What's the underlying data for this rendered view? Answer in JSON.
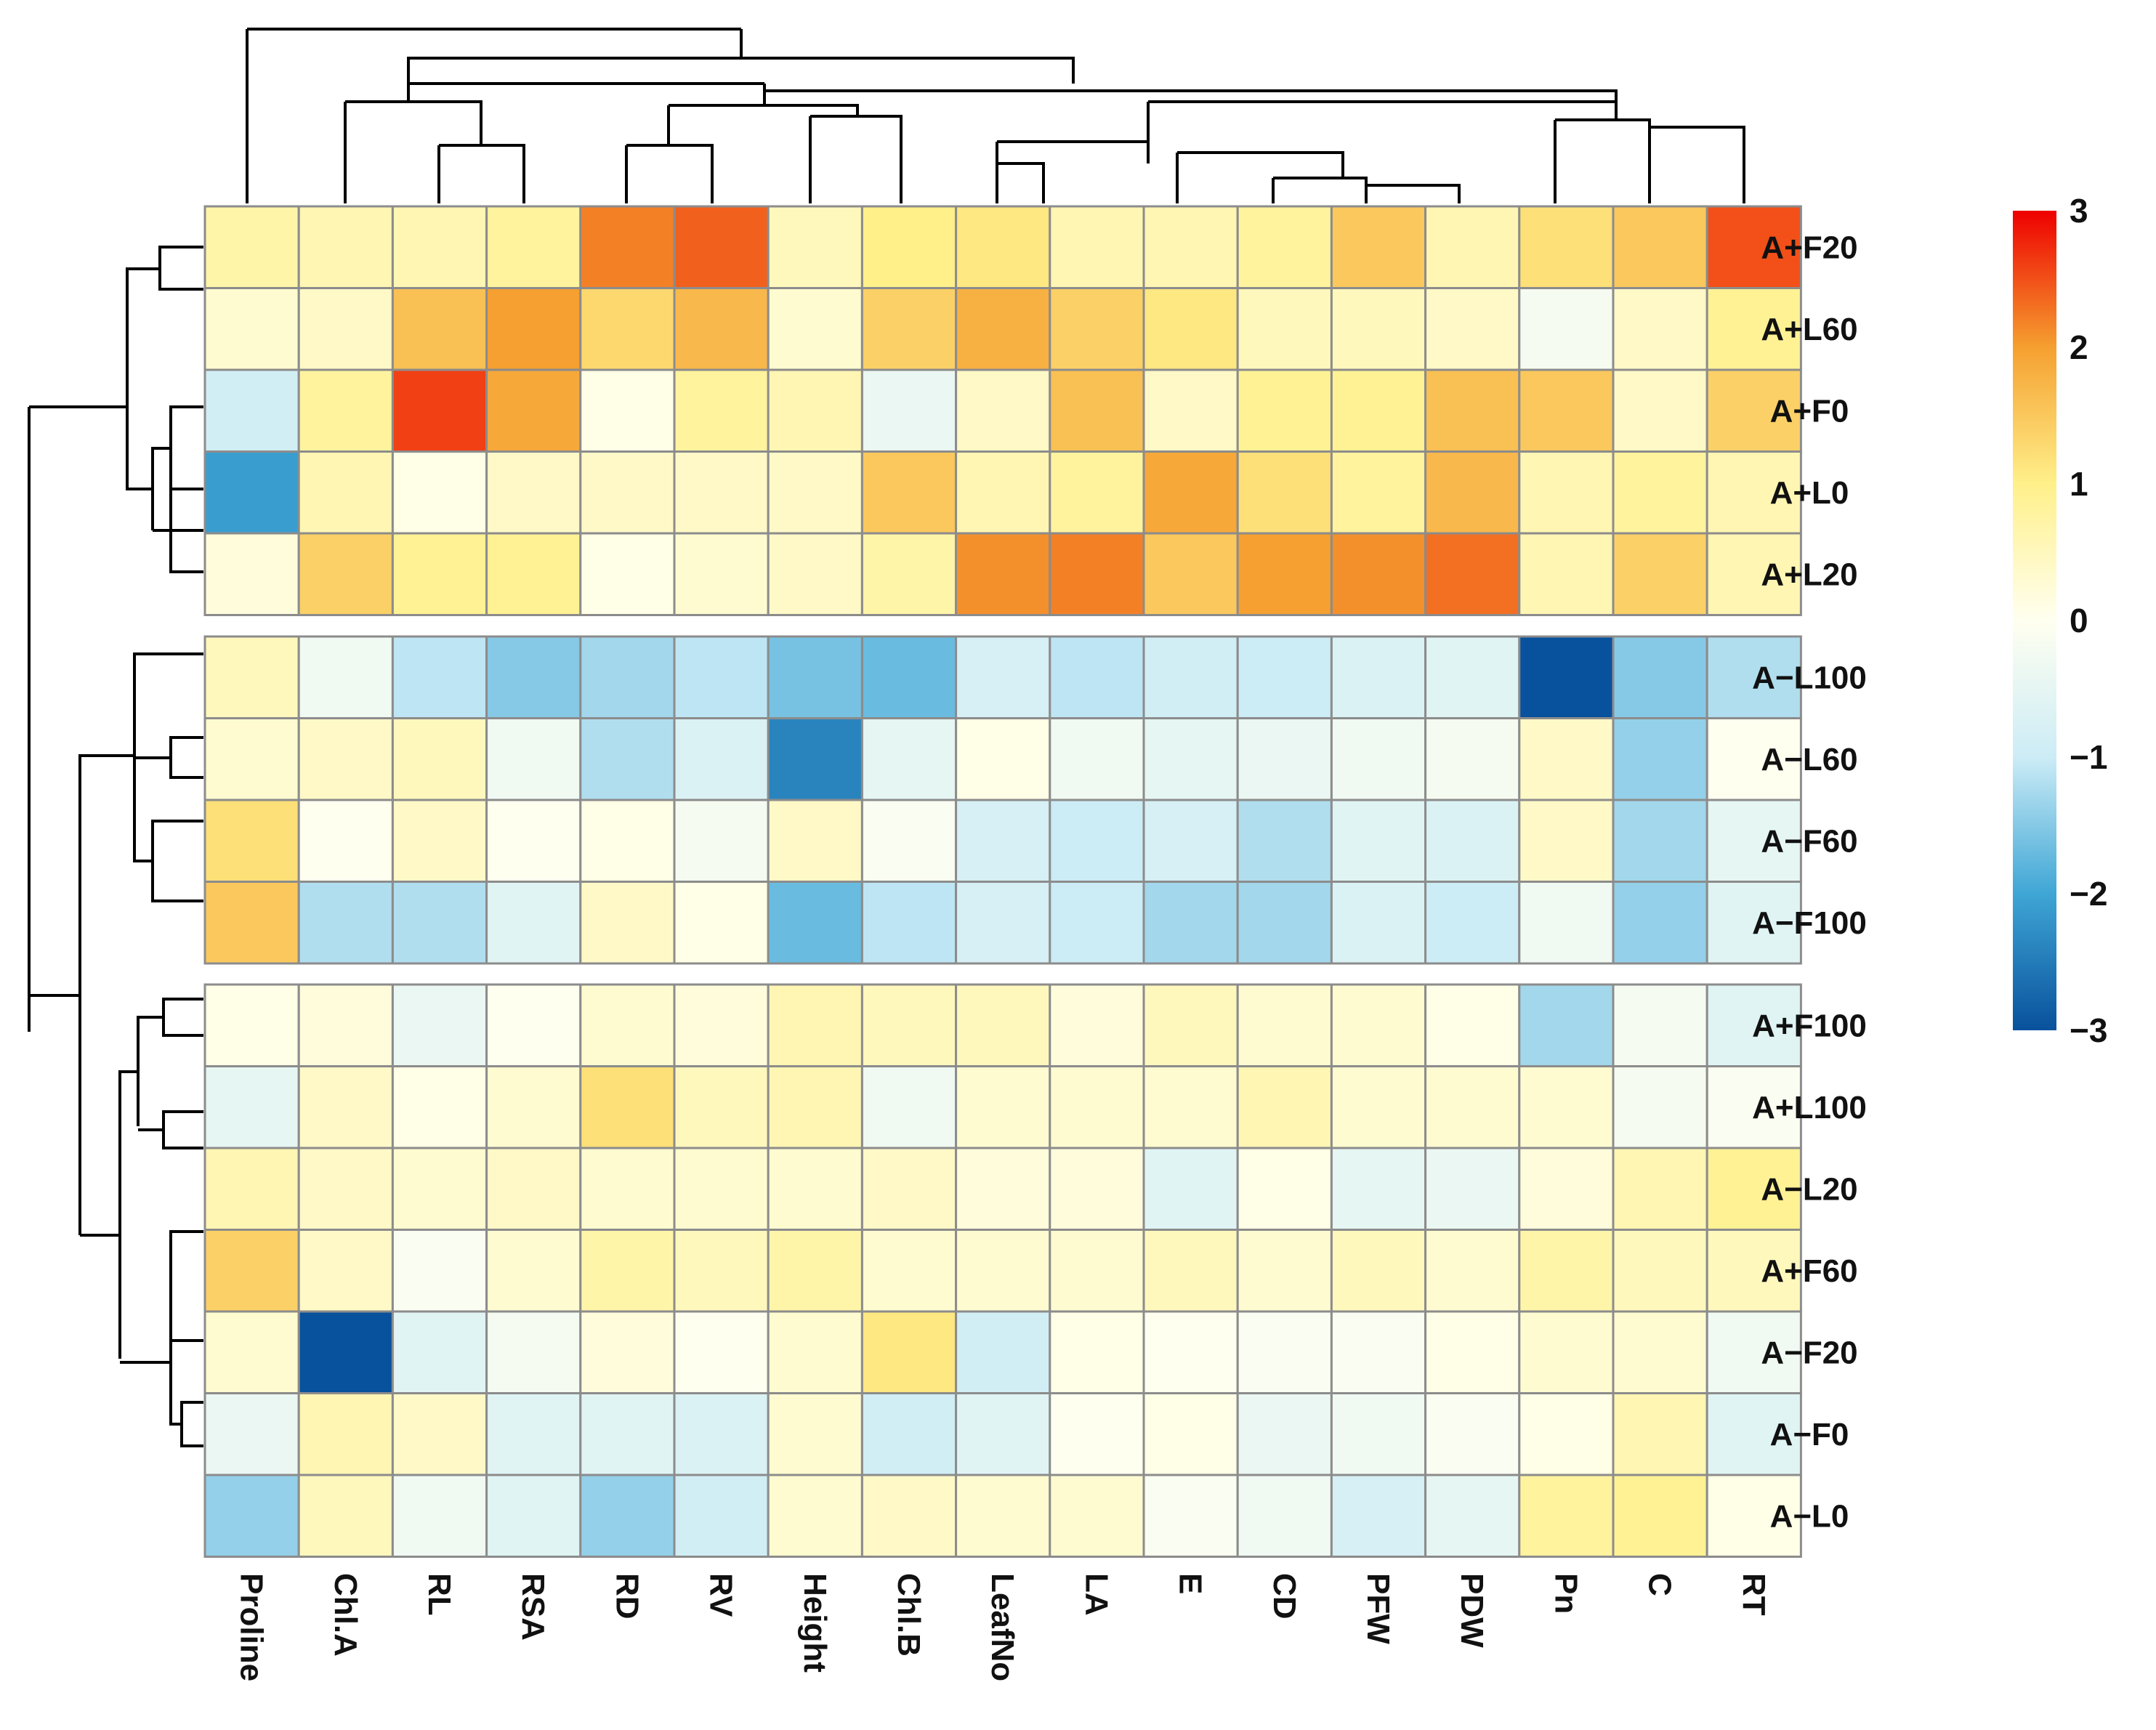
{
  "chart_data": {
    "type": "heatmap",
    "title": "",
    "columns": [
      "Proline",
      "Chl.A",
      "RL",
      "RSA",
      "RD",
      "RV",
      "Height",
      "Chl.B",
      "LeafNo",
      "LA",
      "E",
      "CD",
      "PFW",
      "PDW",
      "Pn",
      "C",
      "RT"
    ],
    "row_groups": [
      {
        "rows": [
          "A+F20",
          "A+L60",
          "A+F0",
          "A+L0",
          "A+L20"
        ]
      },
      {
        "rows": [
          "A−L100",
          "A−L60",
          "A−F60",
          "A−F100"
        ]
      },
      {
        "rows": [
          "A+F100",
          "A+L100",
          "A−L20",
          "A+F60",
          "A−F20",
          "A−F0",
          "A−L0"
        ]
      }
    ],
    "values": [
      [
        0.7,
        0.6,
        0.6,
        0.8,
        2.2,
        2.4,
        0.5,
        1.0,
        1.1,
        0.6,
        0.6,
        0.8,
        1.5,
        0.6,
        1.2,
        1.5,
        2.5
      ],
      [
        0.3,
        0.4,
        1.6,
        2.0,
        1.3,
        1.7,
        0.3,
        1.4,
        1.8,
        1.4,
        1.1,
        0.5,
        0.5,
        0.4,
        -0.2,
        0.4,
        0.9
      ],
      [
        -0.9,
        0.8,
        2.6,
        1.9,
        0.1,
        0.8,
        0.6,
        -0.4,
        0.4,
        1.6,
        0.4,
        0.9,
        0.9,
        1.6,
        1.5,
        0.4,
        1.4
      ],
      [
        -2.1,
        0.6,
        0.1,
        0.4,
        0.4,
        0.4,
        0.4,
        1.5,
        0.6,
        0.8,
        1.9,
        1.2,
        0.8,
        1.7,
        0.6,
        0.8,
        0.6
      ],
      [
        0.2,
        1.4,
        0.9,
        0.9,
        0.1,
        0.3,
        0.4,
        0.7,
        2.1,
        2.2,
        1.5,
        2.0,
        2.1,
        2.3,
        0.6,
        1.4,
        0.6
      ],
      [
        0.5,
        -0.3,
        -1.1,
        -1.5,
        -1.3,
        -1.1,
        -1.6,
        -1.7,
        -0.8,
        -1.1,
        -0.9,
        -1.0,
        -0.7,
        -0.6,
        -3.0,
        -1.5,
        -1.2
      ],
      [
        0.3,
        0.4,
        0.5,
        -0.3,
        -1.2,
        -0.7,
        -2.4,
        -0.5,
        0.1,
        -0.3,
        -0.5,
        -0.4,
        -0.3,
        -0.2,
        0.4,
        -1.4,
        0.0
      ],
      [
        1.2,
        0.0,
        0.4,
        0.0,
        0.1,
        -0.2,
        0.4,
        -0.1,
        -0.8,
        -1.0,
        -0.8,
        -1.2,
        -0.6,
        -0.7,
        0.4,
        -1.3,
        -0.5
      ],
      [
        1.5,
        -1.2,
        -1.2,
        -0.6,
        0.4,
        0.1,
        -1.7,
        -1.1,
        -0.8,
        -1.0,
        -1.3,
        -1.3,
        -0.7,
        -1.0,
        -0.3,
        -1.4,
        -0.6
      ],
      [
        0.1,
        0.2,
        -0.4,
        0.0,
        0.3,
        0.2,
        0.6,
        0.5,
        0.5,
        0.2,
        0.5,
        0.3,
        0.3,
        0.1,
        -1.3,
        -0.2,
        -0.6
      ],
      [
        -0.5,
        0.4,
        0.1,
        0.3,
        1.2,
        0.5,
        0.6,
        -0.3,
        0.3,
        0.3,
        0.3,
        0.6,
        0.3,
        0.3,
        0.3,
        -0.2,
        -0.1
      ],
      [
        0.6,
        0.4,
        0.3,
        0.4,
        0.3,
        0.3,
        0.3,
        0.4,
        0.2,
        0.2,
        -0.6,
        0.1,
        -0.5,
        -0.4,
        0.2,
        0.6,
        0.9
      ],
      [
        1.4,
        0.4,
        -0.1,
        0.3,
        0.7,
        0.5,
        0.7,
        0.3,
        0.3,
        0.3,
        0.5,
        0.3,
        0.5,
        0.3,
        0.7,
        0.5,
        0.5
      ],
      [
        0.3,
        -3.0,
        -0.6,
        -0.2,
        0.2,
        0.0,
        0.3,
        1.1,
        -0.9,
        0.1,
        0.0,
        -0.1,
        -0.1,
        0.1,
        0.3,
        0.3,
        -0.3
      ],
      [
        -0.4,
        0.6,
        0.4,
        -0.6,
        -0.6,
        -0.7,
        0.3,
        -0.9,
        -0.6,
        0.0,
        0.1,
        -0.4,
        -0.3,
        -0.1,
        0.1,
        0.6,
        -0.6
      ],
      [
        -1.4,
        0.5,
        -0.3,
        -0.6,
        -1.4,
        -0.9,
        0.3,
        0.4,
        0.3,
        0.3,
        -0.1,
        -0.3,
        -0.8,
        -0.5,
        0.8,
        0.9,
        0.1
      ]
    ],
    "legend": {
      "position": "right",
      "range": [
        -3,
        3
      ],
      "ticks": [
        "3",
        "2",
        "1",
        "0",
        "−1",
        "−2",
        "−3"
      ],
      "colors": [
        "#08519c",
        "#3fa6d5",
        "#ccecf6",
        "#fffff0",
        "#fff08a",
        "#f5a030",
        "#ee0000"
      ]
    }
  }
}
